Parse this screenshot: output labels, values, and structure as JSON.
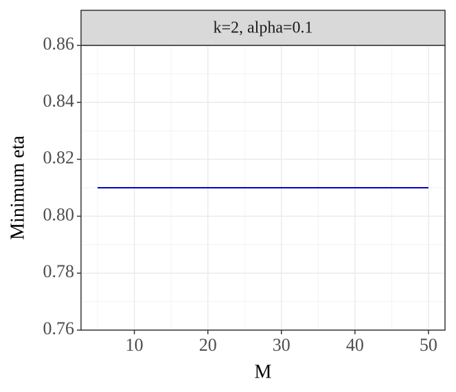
{
  "chart_data": {
    "type": "line",
    "strip_title": "k=2, alpha=0.1",
    "x_label": "M",
    "y_label": "Minimum eta",
    "x": [
      5,
      10,
      15,
      20,
      25,
      30,
      35,
      40,
      45,
      50
    ],
    "series": [
      {
        "color": "#0000cc",
        "values": [
          0.81,
          0.81,
          0.81,
          0.81,
          0.81,
          0.81,
          0.81,
          0.81,
          0.81,
          0.81
        ]
      }
    ],
    "xlim": [
      2.75,
      52.25
    ],
    "xticks": [
      10,
      20,
      30,
      40,
      50
    ],
    "ylim": [
      0.76,
      0.86
    ],
    "yticks": [
      0.76,
      0.78,
      {
        "value": 0.8,
        "label": "0.80"
      },
      0.82,
      0.84,
      0.86
    ],
    "grid": true
  }
}
